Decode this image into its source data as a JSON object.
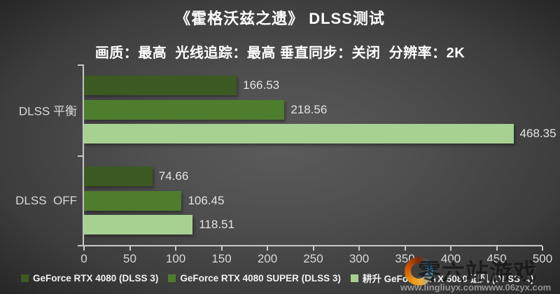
{
  "title": "《霍格沃兹之遗》 DLSS测试",
  "subtitle": "画质：最高  光线追踪：最高 垂直同步：关闭  分辨率：2K",
  "chart_data": {
    "type": "bar",
    "orientation": "horizontal",
    "title": "《霍格沃兹之遗》 DLSS测试",
    "subtitle": "画质：最高  光线追踪：最高 垂直同步：关闭  分辨率：2K",
    "categories": [
      "DLSS 平衡",
      "DLSS  OFF"
    ],
    "series": [
      {
        "name": "GeForce RTX 4080 (DLSS 3)",
        "color": "#3c5a22",
        "values": [
          166.53,
          74.66
        ]
      },
      {
        "name": "GeForce RTX 4080 SUPER (DLSS 3)",
        "color": "#4f7d2e",
        "values": [
          218.56,
          106.45
        ]
      },
      {
        "name": "耕升 GeForce RTX 5080 追风 (DLSS  4)",
        "color": "#a6d191",
        "values": [
          468.35,
          118.51
        ]
      }
    ],
    "xlim": [
      0,
      500
    ],
    "xticks": [
      0,
      50,
      100,
      150,
      200,
      250,
      300,
      350,
      400,
      450,
      500
    ],
    "value_labels": true,
    "grid": false,
    "legend_position": "bottom"
  },
  "watermark": {
    "brand_text": "零六站游戏",
    "urls": [
      "www.lingliuyx.com",
      "www.06zyx.com"
    ]
  },
  "colors": {
    "background_center": "#575757",
    "background_edge": "#262626",
    "axis": "#c9c9c9",
    "tick_text": "#d9d9d9",
    "value_text": "#e3e3e3",
    "title_text": "#ffffff"
  }
}
